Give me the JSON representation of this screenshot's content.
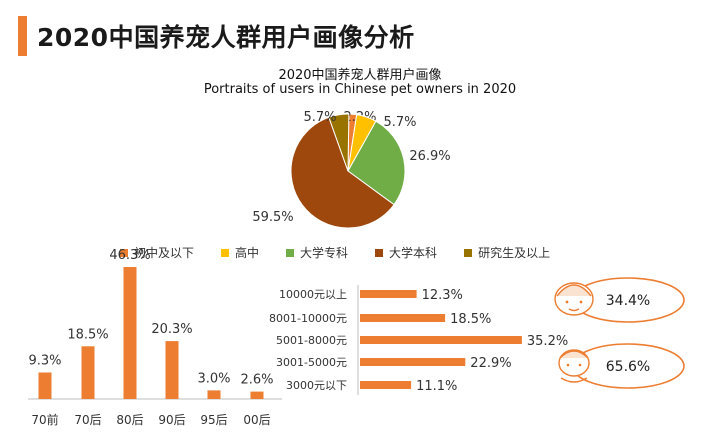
{
  "page_title": "2020中国养宠人群用户画像分析",
  "colors": {
    "accent": "#ed7d31",
    "edu": [
      "#ed7d31",
      "#ffc000",
      "#70ad47",
      "#9e480e",
      "#997300"
    ]
  },
  "chart_data": [
    {
      "type": "pie",
      "title": "2020中国养宠人群用户画像",
      "subtitle": "Portraits of users in Chinese pet owners in 2020",
      "categories": [
        "初中及以下",
        "高中",
        "大学专科",
        "大学本科",
        "研究生及以上"
      ],
      "values": [
        2.2,
        5.7,
        26.9,
        59.5,
        5.7
      ],
      "value_labels": [
        "2.2%",
        "5.7%",
        "26.9%",
        "59.5%",
        "5.7%"
      ],
      "legend_position": "bottom"
    },
    {
      "type": "bar",
      "categories": [
        "70前",
        "70后",
        "80后",
        "90后",
        "95后",
        "00后"
      ],
      "values": [
        9.3,
        18.5,
        46.3,
        20.3,
        3.0,
        2.6
      ],
      "value_labels": [
        "9.3%",
        "18.5%",
        "46.3%",
        "20.3%",
        "3.0%",
        "2.6%"
      ]
    },
    {
      "type": "bar",
      "orientation": "horizontal",
      "categories": [
        "10000元以上",
        "8001-10000元",
        "5001-8000元",
        "3001-5000元",
        "3000元以下"
      ],
      "values": [
        12.3,
        18.5,
        35.2,
        22.9,
        11.1
      ],
      "value_labels": [
        "12.3%",
        "18.5%",
        "35.2%",
        "22.9%",
        "11.1%"
      ]
    },
    {
      "type": "table",
      "values": [
        34.4,
        65.6
      ],
      "value_labels": [
        "34.4%",
        "65.6%"
      ]
    }
  ]
}
